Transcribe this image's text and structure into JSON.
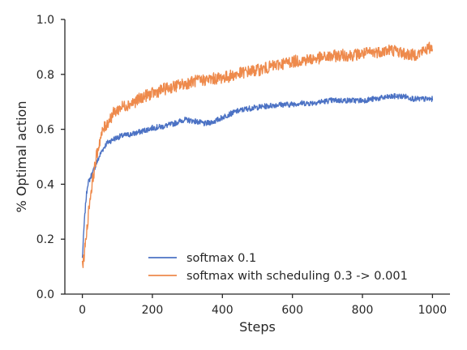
{
  "chart_data": {
    "type": "line",
    "title": "",
    "xlabel": "Steps",
    "ylabel": "% Optimal action",
    "xlim": [
      -50,
      1050
    ],
    "ylim": [
      0.0,
      1.0
    ],
    "xticks": [
      0,
      200,
      400,
      600,
      800,
      1000
    ],
    "yticks": [
      0.0,
      0.2,
      0.4,
      0.6,
      0.8,
      1.0
    ],
    "xtick_labels": [
      "0",
      "200",
      "400",
      "600",
      "800",
      "1000"
    ],
    "ytick_labels": [
      "0.0",
      "0.2",
      "0.4",
      "0.6",
      "0.8",
      "1.0"
    ],
    "grid": false,
    "legend_position": "lower-right",
    "series": [
      {
        "name": "softmax 0.1",
        "color": "#4c72c4",
        "points": [
          [
            0,
            0.13
          ],
          [
            5,
            0.25
          ],
          [
            10,
            0.34
          ],
          [
            15,
            0.4
          ],
          [
            25,
            0.43
          ],
          [
            35,
            0.46
          ],
          [
            45,
            0.49
          ],
          [
            55,
            0.52
          ],
          [
            70,
            0.55
          ],
          [
            90,
            0.565
          ],
          [
            110,
            0.575
          ],
          [
            130,
            0.58
          ],
          [
            150,
            0.585
          ],
          [
            175,
            0.595
          ],
          [
            200,
            0.605
          ],
          [
            230,
            0.61
          ],
          [
            260,
            0.62
          ],
          [
            290,
            0.635
          ],
          [
            320,
            0.63
          ],
          [
            350,
            0.62
          ],
          [
            380,
            0.63
          ],
          [
            410,
            0.65
          ],
          [
            440,
            0.665
          ],
          [
            470,
            0.675
          ],
          [
            500,
            0.68
          ],
          [
            530,
            0.685
          ],
          [
            560,
            0.69
          ],
          [
            590,
            0.69
          ],
          [
            620,
            0.695
          ],
          [
            650,
            0.695
          ],
          [
            680,
            0.7
          ],
          [
            710,
            0.705
          ],
          [
            740,
            0.705
          ],
          [
            770,
            0.705
          ],
          [
            800,
            0.705
          ],
          [
            830,
            0.71
          ],
          [
            860,
            0.715
          ],
          [
            890,
            0.72
          ],
          [
            920,
            0.72
          ],
          [
            950,
            0.71
          ],
          [
            980,
            0.71
          ],
          [
            1000,
            0.71
          ]
        ]
      },
      {
        "name": "softmax with scheduling 0.3 -> 0.001",
        "color": "#ee8a4c",
        "points": [
          [
            0,
            0.1
          ],
          [
            5,
            0.14
          ],
          [
            10,
            0.2
          ],
          [
            15,
            0.26
          ],
          [
            20,
            0.33
          ],
          [
            30,
            0.42
          ],
          [
            40,
            0.5
          ],
          [
            50,
            0.56
          ],
          [
            60,
            0.6
          ],
          [
            75,
            0.63
          ],
          [
            90,
            0.66
          ],
          [
            110,
            0.68
          ],
          [
            130,
            0.69
          ],
          [
            150,
            0.7
          ],
          [
            175,
            0.72
          ],
          [
            200,
            0.73
          ],
          [
            230,
            0.745
          ],
          [
            260,
            0.755
          ],
          [
            290,
            0.765
          ],
          [
            320,
            0.775
          ],
          [
            350,
            0.78
          ],
          [
            380,
            0.785
          ],
          [
            410,
            0.79
          ],
          [
            440,
            0.8
          ],
          [
            470,
            0.81
          ],
          [
            500,
            0.815
          ],
          [
            530,
            0.825
          ],
          [
            560,
            0.835
          ],
          [
            590,
            0.845
          ],
          [
            620,
            0.85
          ],
          [
            650,
            0.855
          ],
          [
            680,
            0.86
          ],
          [
            710,
            0.865
          ],
          [
            740,
            0.87
          ],
          [
            770,
            0.87
          ],
          [
            800,
            0.875
          ],
          [
            830,
            0.88
          ],
          [
            860,
            0.885
          ],
          [
            880,
            0.89
          ],
          [
            900,
            0.885
          ],
          [
            920,
            0.875
          ],
          [
            940,
            0.87
          ],
          [
            960,
            0.875
          ],
          [
            980,
            0.89
          ],
          [
            1000,
            0.9
          ]
        ]
      }
    ]
  }
}
